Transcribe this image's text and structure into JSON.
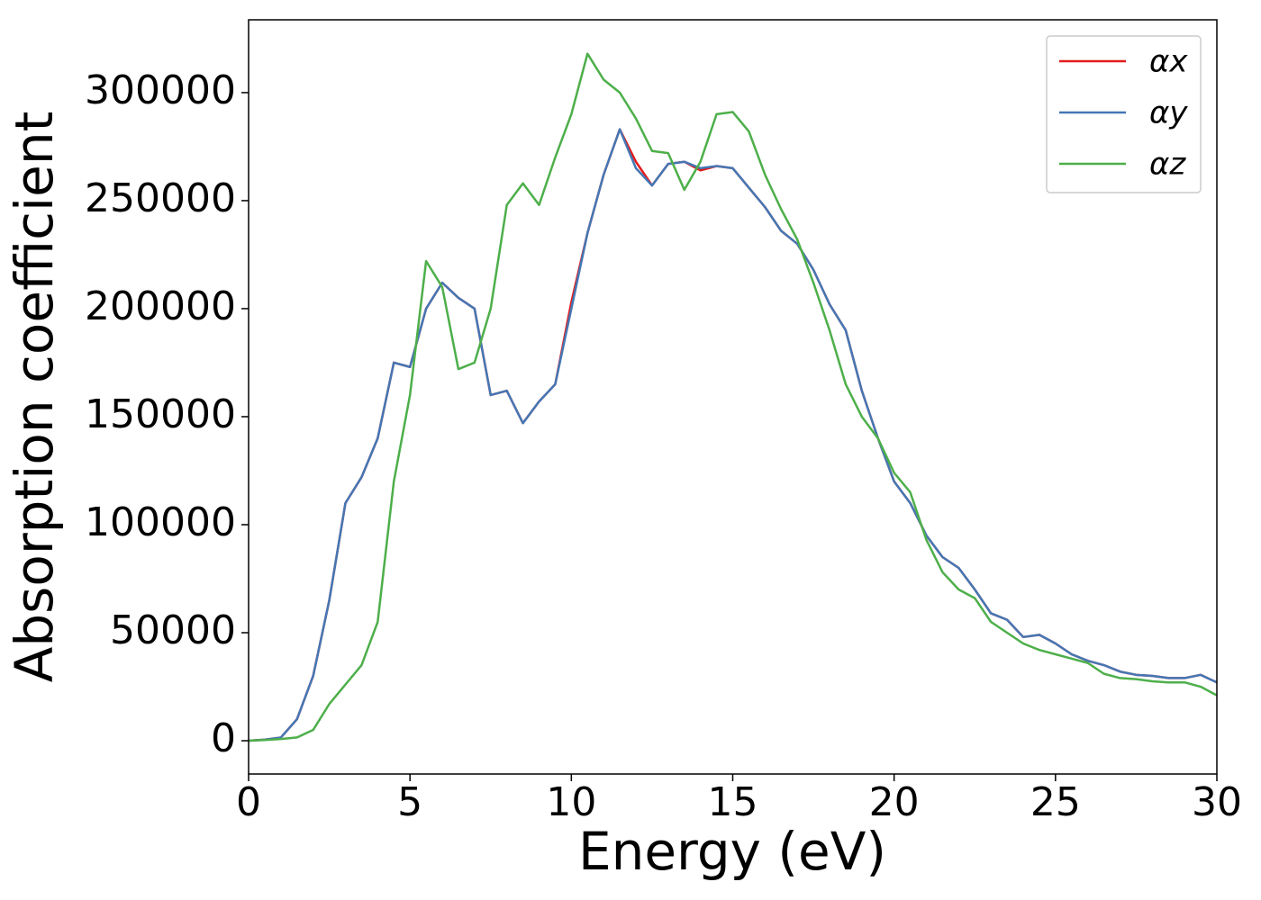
{
  "chart_data": {
    "type": "line",
    "xlabel": "Energy (eV)",
    "ylabel": "Absorption coefficient",
    "x": [
      0,
      0.5,
      1,
      1.5,
      2,
      2.5,
      3,
      3.5,
      4,
      4.5,
      5,
      5.5,
      6,
      6.5,
      7,
      7.5,
      8,
      8.5,
      9,
      9.5,
      10,
      10.5,
      11,
      11.5,
      12,
      12.5,
      13,
      13.5,
      14,
      14.5,
      15,
      15.5,
      16,
      16.5,
      17,
      17.5,
      18,
      18.5,
      19,
      19.5,
      20,
      20.5,
      21,
      21.5,
      22,
      22.5,
      23,
      23.5,
      24,
      24.5,
      25,
      25.5,
      26,
      26.5,
      27,
      27.5,
      28,
      28.5,
      29,
      29.5,
      30
    ],
    "series": [
      {
        "name": "αx",
        "color": "#e41a1c",
        "values": [
          0,
          500,
          1500,
          10000,
          30000,
          65000,
          110000,
          122000,
          140000,
          175000,
          173000,
          200000,
          212000,
          205000,
          200000,
          160000,
          162000,
          147000,
          157000,
          165000,
          203000,
          235000,
          262000,
          283000,
          268000,
          257000,
          267000,
          268000,
          264000,
          266000,
          265000,
          256000,
          247000,
          236000,
          230000,
          218000,
          202000,
          190000,
          162000,
          140000,
          120000,
          110000,
          95000,
          85000,
          80000,
          70000,
          59000,
          56000,
          48000,
          49000,
          45000,
          40000,
          37000,
          35000,
          32000,
          30500,
          30000,
          29000,
          29000,
          30500,
          27000
        ]
      },
      {
        "name": "αy",
        "color": "#4477b4",
        "values": [
          0,
          500,
          1500,
          10000,
          30000,
          65000,
          110000,
          122000,
          140000,
          175000,
          173000,
          200000,
          212000,
          205000,
          200000,
          160000,
          162000,
          147000,
          157000,
          165000,
          200000,
          235000,
          262000,
          283000,
          265000,
          257000,
          267000,
          268000,
          265000,
          266000,
          265000,
          256000,
          247000,
          236000,
          230000,
          218000,
          202000,
          190000,
          162000,
          140000,
          120000,
          110000,
          95000,
          85000,
          80000,
          70000,
          59000,
          56000,
          48000,
          49000,
          45000,
          40000,
          37000,
          35000,
          32000,
          30500,
          30000,
          29000,
          29000,
          30500,
          27000
        ]
      },
      {
        "name": "αz",
        "color": "#4daf4a",
        "values": [
          0,
          300,
          800,
          1500,
          5000,
          17000,
          26000,
          35000,
          55000,
          120000,
          160000,
          222000,
          210000,
          172000,
          175000,
          200000,
          248000,
          258000,
          248000,
          270000,
          290000,
          318000,
          306000,
          300000,
          288000,
          273000,
          272000,
          255000,
          268000,
          290000,
          291000,
          282000,
          262000,
          246000,
          232000,
          212000,
          190000,
          165000,
          150000,
          140000,
          124000,
          115000,
          93000,
          78000,
          70000,
          66000,
          55000,
          50000,
          45000,
          42000,
          40000,
          38000,
          36000,
          31000,
          29000,
          28500,
          27500,
          27000,
          27000,
          25000,
          21000
        ]
      }
    ],
    "xlim": [
      0,
      30
    ],
    "xticks": [
      0,
      5,
      10,
      15,
      20,
      25,
      30
    ],
    "ylim": [
      -15400,
      333700
    ],
    "yticks": [
      0,
      50000,
      100000,
      150000,
      200000,
      250000,
      300000
    ],
    "legend": "upper right"
  }
}
